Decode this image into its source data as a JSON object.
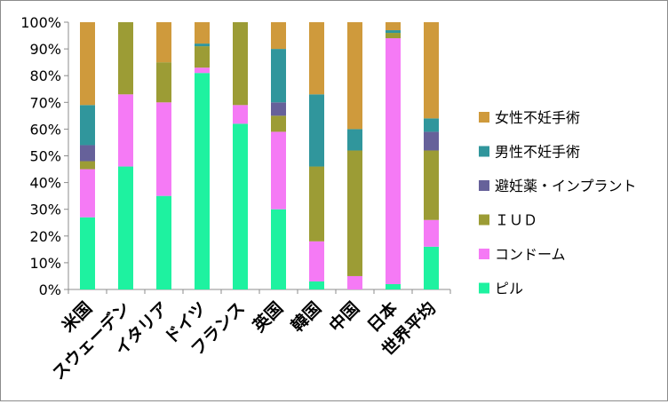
{
  "chart_data": {
    "type": "bar",
    "stacked": true,
    "percent": true,
    "categories": [
      "米国",
      "スウェーデン",
      "イタリア",
      "ドイツ",
      "フランス",
      "英国",
      "韓国",
      "中国",
      "日本",
      "世界平均"
    ],
    "series": [
      {
        "name": "ピル",
        "color": "#1ef2a0",
        "values": [
          27,
          46,
          35,
          81,
          62,
          30,
          3,
          0,
          2,
          16
        ]
      },
      {
        "name": "コンドーム",
        "color": "#f57af5",
        "values": [
          18,
          27,
          35,
          2,
          7,
          29,
          15,
          5,
          92,
          10
        ]
      },
      {
        "name": "ＩＵＤ",
        "color": "#9c9c35",
        "values": [
          3,
          27,
          15,
          8,
          31,
          6,
          28,
          47,
          2,
          26
        ]
      },
      {
        "name": "避妊薬・インプラント",
        "color": "#66619a",
        "values": [
          6,
          0,
          0,
          0,
          0,
          5,
          0,
          0,
          0,
          7
        ]
      },
      {
        "name": "男性不妊手術",
        "color": "#30969c",
        "values": [
          15,
          0,
          0,
          1,
          0,
          20,
          27,
          8,
          1,
          5
        ]
      },
      {
        "name": "女性不妊手術",
        "color": "#cf9a3c",
        "values": [
          31,
          0,
          15,
          8,
          0,
          10,
          27,
          40,
          3,
          36
        ]
      }
    ],
    "y_ticks": [
      "0%",
      "10%",
      "20%",
      "30%",
      "40%",
      "50%",
      "60%",
      "70%",
      "80%",
      "90%",
      "100%"
    ],
    "ylim": [
      0,
      100
    ],
    "grid": false,
    "legend": "right"
  }
}
